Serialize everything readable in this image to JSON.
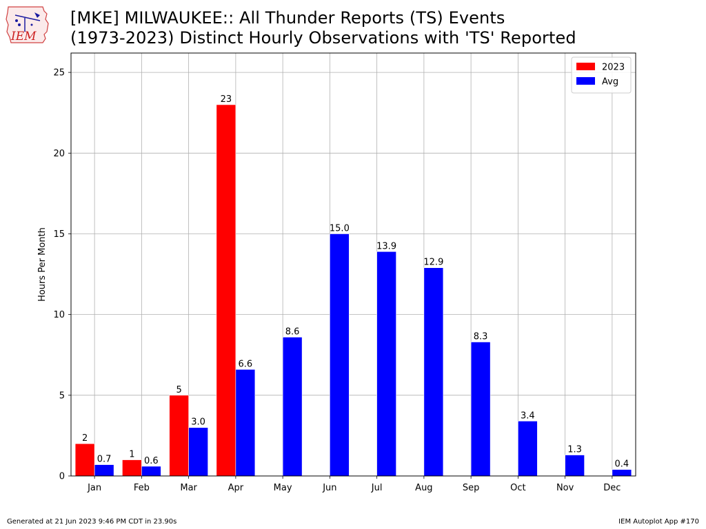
{
  "title": {
    "line1": "[MKE] MILWAUKEE:: All Thunder Reports (TS) Events",
    "line2": "(1973-2023) Distinct Hourly Observations with 'TS' Reported"
  },
  "logo": {
    "text": "IEM",
    "icon": "iem-logo-icon"
  },
  "footer": {
    "left": "Generated at 21 Jun 2023 9:46 PM CDT in 23.90s",
    "right": "IEM Autoplot App #170"
  },
  "colors": {
    "series_2023": "#ff0000",
    "series_avg": "#0000ff",
    "grid": "#b0b0b0"
  },
  "chart_data": {
    "type": "bar",
    "categories": [
      "Jan",
      "Feb",
      "Mar",
      "Apr",
      "May",
      "Jun",
      "Jul",
      "Aug",
      "Sep",
      "Oct",
      "Nov",
      "Dec"
    ],
    "series": [
      {
        "name": "2023",
        "values": [
          2,
          1,
          5,
          23,
          null,
          null,
          null,
          null,
          null,
          null,
          null,
          null
        ],
        "labels": [
          "2",
          "1",
          "5",
          "23",
          "",
          "",
          "",
          "",
          "",
          "",
          "",
          ""
        ]
      },
      {
        "name": "Avg",
        "values": [
          0.7,
          0.6,
          3.0,
          6.6,
          8.6,
          15.0,
          13.9,
          12.9,
          8.3,
          3.4,
          1.3,
          0.4
        ],
        "labels": [
          "0.7",
          "0.6",
          "3.0",
          "6.6",
          "8.6",
          "15.0",
          "13.9",
          "12.9",
          "8.3",
          "3.4",
          "1.3",
          "0.4"
        ]
      }
    ],
    "title": "",
    "xlabel": "",
    "ylabel": "Hours Per Month",
    "ylim": [
      0,
      26.2
    ],
    "yticks": [
      0,
      5,
      10,
      15,
      20,
      25
    ],
    "grid": true,
    "legend": "top-right"
  }
}
